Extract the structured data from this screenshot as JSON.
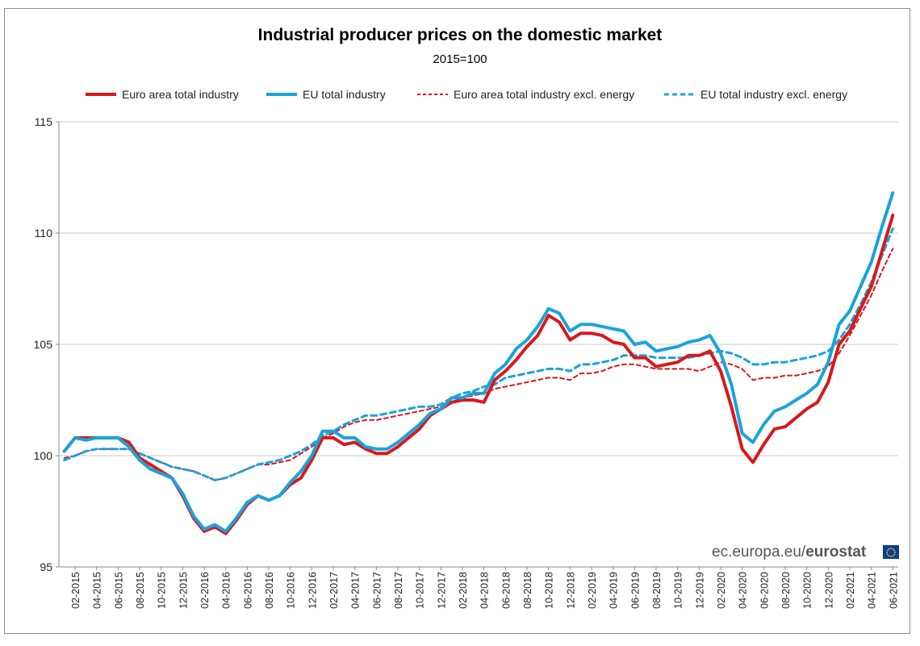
{
  "chart_data": {
    "type": "line",
    "title": "Industrial producer prices on the domestic market",
    "subtitle": "2015=100",
    "ylim": [
      95,
      115
    ],
    "yticks": [
      95,
      100,
      105,
      110,
      115
    ],
    "grid": true,
    "legend_position": "top",
    "x_tick_labels": [
      "02-2015",
      "04-2015",
      "06-2015",
      "08-2015",
      "10-2015",
      "12-2015",
      "02-2016",
      "04-2016",
      "06-2016",
      "08-2016",
      "10-2016",
      "12-2016",
      "02-2017",
      "04-2017",
      "06-2017",
      "08-2017",
      "10-2017",
      "12-2017",
      "02-2018",
      "04-2018",
      "06-2018",
      "08-2018",
      "10-2018",
      "12-2018",
      "02-2019",
      "04-2019",
      "06-2019",
      "08-2019",
      "10-2019",
      "12-2019",
      "02-2020",
      "04-2020",
      "06-2020",
      "08-2020",
      "10-2020",
      "12-2020",
      "02-2021",
      "04-2021",
      "06-2021"
    ],
    "x": [
      "01-2015",
      "02-2015",
      "03-2015",
      "04-2015",
      "05-2015",
      "06-2015",
      "07-2015",
      "08-2015",
      "09-2015",
      "10-2015",
      "11-2015",
      "12-2015",
      "01-2016",
      "02-2016",
      "03-2016",
      "04-2016",
      "05-2016",
      "06-2016",
      "07-2016",
      "08-2016",
      "09-2016",
      "10-2016",
      "11-2016",
      "12-2016",
      "01-2017",
      "02-2017",
      "03-2017",
      "04-2017",
      "05-2017",
      "06-2017",
      "07-2017",
      "08-2017",
      "09-2017",
      "10-2017",
      "11-2017",
      "12-2017",
      "01-2018",
      "02-2018",
      "03-2018",
      "04-2018",
      "05-2018",
      "06-2018",
      "07-2018",
      "08-2018",
      "09-2018",
      "10-2018",
      "11-2018",
      "12-2018",
      "01-2019",
      "02-2019",
      "03-2019",
      "04-2019",
      "05-2019",
      "06-2019",
      "07-2019",
      "08-2019",
      "09-2019",
      "10-2019",
      "11-2019",
      "12-2019",
      "01-2020",
      "02-2020",
      "03-2020",
      "04-2020",
      "05-2020",
      "06-2020",
      "07-2020",
      "08-2020",
      "09-2020",
      "10-2020",
      "11-2020",
      "12-2020",
      "01-2021",
      "02-2021",
      "03-2021",
      "04-2021",
      "05-2021",
      "06-2021"
    ],
    "series": [
      {
        "name": "Euro area total industry",
        "color": "#d7191c",
        "style": "solid",
        "values": [
          100.2,
          100.8,
          100.8,
          100.8,
          100.8,
          100.8,
          100.6,
          99.9,
          99.6,
          99.3,
          99.0,
          98.2,
          97.2,
          96.6,
          96.8,
          96.5,
          97.1,
          97.8,
          98.2,
          98.0,
          98.2,
          98.7,
          99.0,
          99.8,
          100.8,
          100.8,
          100.5,
          100.6,
          100.3,
          100.1,
          100.1,
          100.4,
          100.8,
          101.2,
          101.8,
          102.1,
          102.4,
          102.5,
          102.5,
          102.4,
          103.4,
          103.8,
          104.3,
          104.9,
          105.4,
          106.3,
          106.0,
          105.2,
          105.5,
          105.5,
          105.4,
          105.1,
          105.0,
          104.4,
          104.4,
          104.0,
          104.1,
          104.2,
          104.5,
          104.5,
          104.7,
          103.8,
          102.2,
          100.3,
          99.7,
          100.5,
          101.2,
          101.3,
          101.7,
          102.1,
          102.4,
          103.3,
          105.0,
          105.6,
          106.6,
          107.6,
          109.2,
          110.8
        ]
      },
      {
        "name": "EU total industry",
        "color": "#1aa3d9",
        "style": "solid",
        "values": [
          100.2,
          100.8,
          100.7,
          100.8,
          100.8,
          100.8,
          100.4,
          99.8,
          99.4,
          99.2,
          99.0,
          98.3,
          97.3,
          96.7,
          96.9,
          96.6,
          97.2,
          97.9,
          98.2,
          98.0,
          98.2,
          98.8,
          99.3,
          100.0,
          101.1,
          101.1,
          100.8,
          100.8,
          100.4,
          100.3,
          100.3,
          100.6,
          101.0,
          101.4,
          101.9,
          102.1,
          102.6,
          102.6,
          102.8,
          102.8,
          103.7,
          104.1,
          104.8,
          105.2,
          105.8,
          106.6,
          106.4,
          105.6,
          105.9,
          105.9,
          105.8,
          105.7,
          105.6,
          105.0,
          105.1,
          104.7,
          104.8,
          104.9,
          105.1,
          105.2,
          105.4,
          104.6,
          103.2,
          101.0,
          100.6,
          101.4,
          102.0,
          102.2,
          102.5,
          102.8,
          103.2,
          104.2,
          105.9,
          106.5,
          107.6,
          108.7,
          110.3,
          111.8
        ]
      },
      {
        "name": "Euro area total industry excl. energy",
        "color": "#d7191c",
        "style": "dashed",
        "values": [
          99.9,
          100.0,
          100.2,
          100.3,
          100.3,
          100.3,
          100.3,
          100.1,
          99.9,
          99.7,
          99.5,
          99.4,
          99.3,
          99.1,
          98.9,
          99.0,
          99.2,
          99.4,
          99.6,
          99.6,
          99.7,
          99.8,
          100.1,
          100.4,
          100.8,
          101.0,
          101.3,
          101.5,
          101.6,
          101.6,
          101.7,
          101.8,
          101.9,
          102.0,
          102.1,
          102.2,
          102.4,
          102.6,
          102.7,
          102.8,
          103.0,
          103.1,
          103.2,
          103.3,
          103.4,
          103.5,
          103.5,
          103.4,
          103.7,
          103.7,
          103.8,
          104.0,
          104.1,
          104.1,
          104.0,
          103.9,
          103.9,
          103.9,
          103.9,
          103.8,
          104.0,
          104.2,
          104.1,
          103.9,
          103.4,
          103.5,
          103.5,
          103.6,
          103.6,
          103.7,
          103.8,
          104.0,
          104.6,
          105.4,
          106.3,
          107.2,
          108.3,
          109.3
        ]
      },
      {
        "name": "EU total industry excl. energy",
        "color": "#1aa3d9",
        "style": "dashed",
        "values": [
          99.8,
          100.0,
          100.2,
          100.3,
          100.3,
          100.3,
          100.3,
          100.1,
          99.9,
          99.7,
          99.5,
          99.4,
          99.3,
          99.1,
          98.9,
          99.0,
          99.2,
          99.4,
          99.6,
          99.7,
          99.8,
          100.0,
          100.2,
          100.5,
          100.9,
          101.1,
          101.4,
          101.6,
          101.8,
          101.8,
          101.9,
          102.0,
          102.1,
          102.2,
          102.2,
          102.3,
          102.6,
          102.8,
          102.9,
          103.1,
          103.2,
          103.5,
          103.6,
          103.7,
          103.8,
          103.9,
          103.9,
          103.8,
          104.1,
          104.1,
          104.2,
          104.3,
          104.5,
          104.5,
          104.5,
          104.4,
          104.4,
          104.4,
          104.4,
          104.5,
          104.6,
          104.7,
          104.6,
          104.4,
          104.1,
          104.1,
          104.2,
          104.2,
          104.3,
          104.4,
          104.5,
          104.7,
          105.2,
          105.9,
          106.8,
          107.8,
          109.0,
          110.2
        ]
      }
    ]
  },
  "watermark": {
    "part1": "ec.europa.eu/",
    "part2": "eurostat"
  }
}
